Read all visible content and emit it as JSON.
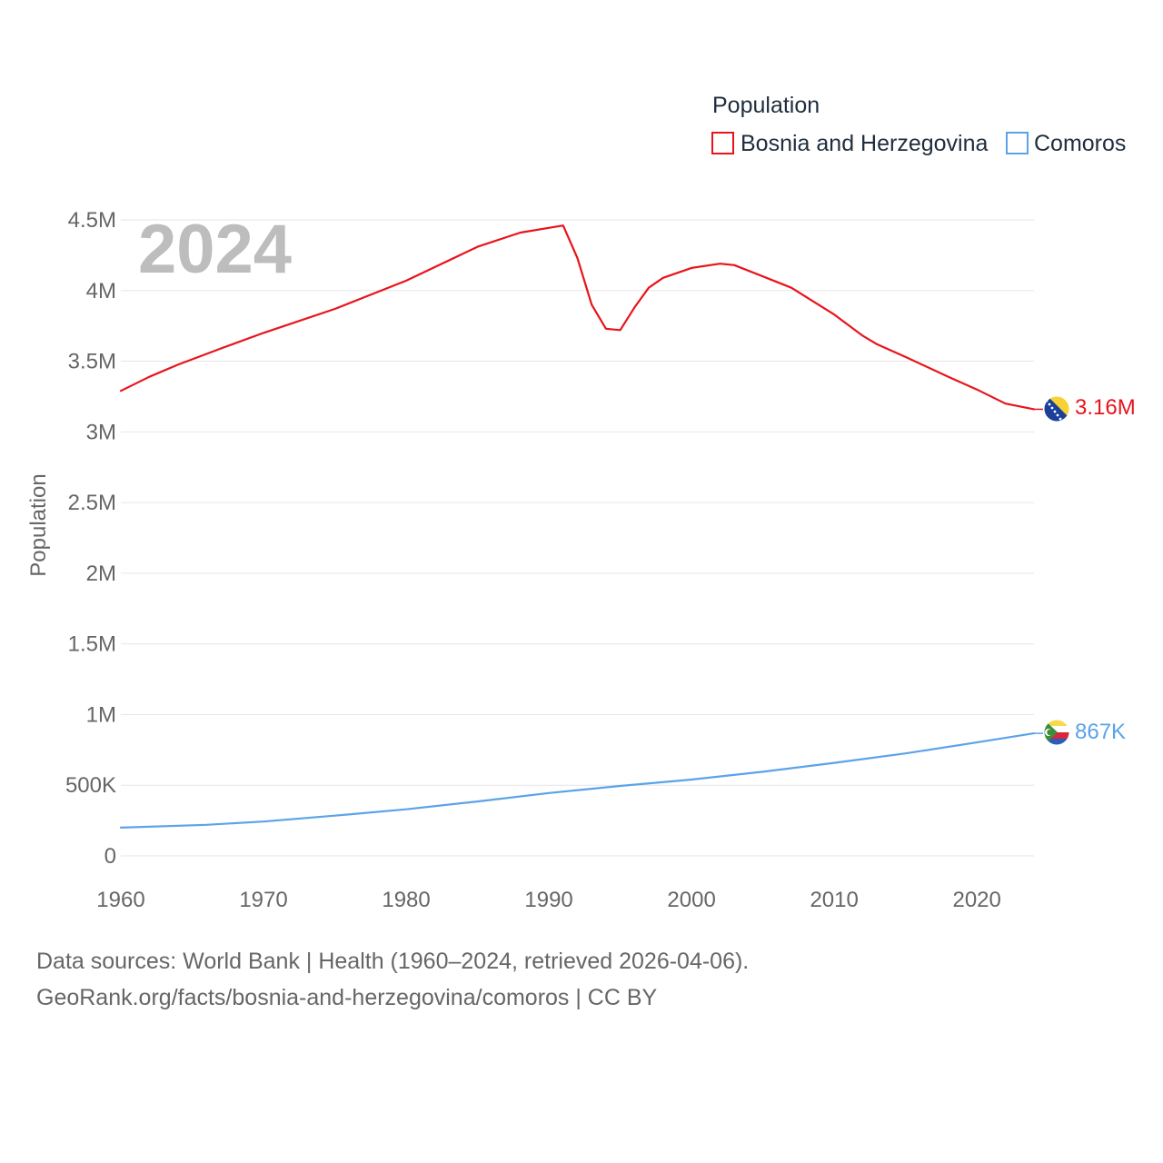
{
  "chart_data": {
    "type": "line",
    "legend_title": "Population",
    "watermark_year": "2024",
    "ylabel": "Population",
    "xlabel": "",
    "xlim": [
      1960,
      2024
    ],
    "ylim": [
      0,
      4500000
    ],
    "x_ticks": [
      1960,
      1970,
      1980,
      1990,
      2000,
      2010,
      2020
    ],
    "x_tick_labels": [
      "1960",
      "1970",
      "1980",
      "1990",
      "2000",
      "2010",
      "2020"
    ],
    "y_ticks": [
      0,
      500000,
      1000000,
      1500000,
      2000000,
      2500000,
      3000000,
      3500000,
      4000000,
      4500000
    ],
    "y_tick_labels": [
      "0",
      "500K",
      "1M",
      "1.5M",
      "2M",
      "2.5M",
      "3M",
      "3.5M",
      "4M",
      "4.5M"
    ],
    "grid": true,
    "legend_position": "top-right",
    "series": [
      {
        "name": "Bosnia and Herzegovina",
        "color": "#e8141b",
        "end_label": "3.16M",
        "points": [
          [
            1960,
            3290000
          ],
          [
            1962,
            3390000
          ],
          [
            1964,
            3475000
          ],
          [
            1967,
            3590000
          ],
          [
            1970,
            3700000
          ],
          [
            1975,
            3870000
          ],
          [
            1980,
            4070000
          ],
          [
            1985,
            4310000
          ],
          [
            1988,
            4410000
          ],
          [
            1991,
            4460000
          ],
          [
            1992,
            4230000
          ],
          [
            1993,
            3900000
          ],
          [
            1994,
            3730000
          ],
          [
            1995,
            3720000
          ],
          [
            1996,
            3880000
          ],
          [
            1997,
            4020000
          ],
          [
            1998,
            4090000
          ],
          [
            2000,
            4160000
          ],
          [
            2002,
            4190000
          ],
          [
            2003,
            4180000
          ],
          [
            2005,
            4100000
          ],
          [
            2007,
            4020000
          ],
          [
            2010,
            3830000
          ],
          [
            2012,
            3680000
          ],
          [
            2013,
            3620000
          ],
          [
            2015,
            3530000
          ],
          [
            2018,
            3390000
          ],
          [
            2020,
            3300000
          ],
          [
            2022,
            3200000
          ],
          [
            2024,
            3160000
          ]
        ]
      },
      {
        "name": "Comoros",
        "color": "#5ba3e8",
        "end_label": "867K",
        "points": [
          [
            1960,
            200000
          ],
          [
            1966,
            220000
          ],
          [
            1970,
            243000
          ],
          [
            1975,
            285000
          ],
          [
            1980,
            330000
          ],
          [
            1985,
            385000
          ],
          [
            1990,
            445000
          ],
          [
            1995,
            495000
          ],
          [
            2000,
            540000
          ],
          [
            2005,
            595000
          ],
          [
            2010,
            658000
          ],
          [
            2015,
            725000
          ],
          [
            2020,
            803000
          ],
          [
            2024,
            867000
          ]
        ]
      }
    ]
  },
  "source_line_1": "Data sources: World Bank | Health (1960–2024, retrieved 2026-04-06).",
  "source_line_2": "GeoRank.org/facts/bosnia-and-herzegovina/comoros | CC BY",
  "colors": {
    "flag_bih_blue": "#1b3f9a",
    "flag_bih_yellow": "#f6d235",
    "flag_comoros_yellow": "#f7d94c",
    "flag_comoros_white": "#ffffff",
    "flag_comoros_red": "#d7263d",
    "flag_comoros_blue": "#2a5fb8",
    "flag_comoros_green": "#3d8e3a"
  }
}
